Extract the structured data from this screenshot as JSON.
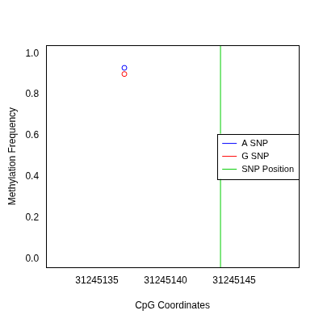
{
  "chart_data": {
    "type": "scatter",
    "x_label": "CpG Coordinates",
    "y_label": "Methylation Frequency",
    "series": [
      {
        "name": "A SNP",
        "color": "#0000ff",
        "marker": "open_circle",
        "x": [
          31245137
        ],
        "values": [
          0.93
        ]
      },
      {
        "name": "G SNP",
        "color": "#ff0000",
        "marker": "open_circle",
        "x": [
          31245137
        ],
        "values": [
          0.9
        ]
      },
      {
        "name": "SNP Position",
        "color": "#00cc00",
        "type": "vline",
        "x": [
          31245144
        ]
      }
    ],
    "xlim": [
      31245131.3,
      31245149.7
    ],
    "xticks": [
      31245135,
      31245140,
      31245145
    ],
    "ylim": [
      -0.04,
      1.04
    ],
    "yticks": [
      {
        "value": 0,
        "label": "0.0"
      },
      0.2,
      0.4,
      0.6,
      0.8,
      {
        "value": 1,
        "label": "1.0"
      }
    ],
    "grid": false,
    "legend": "right"
  }
}
